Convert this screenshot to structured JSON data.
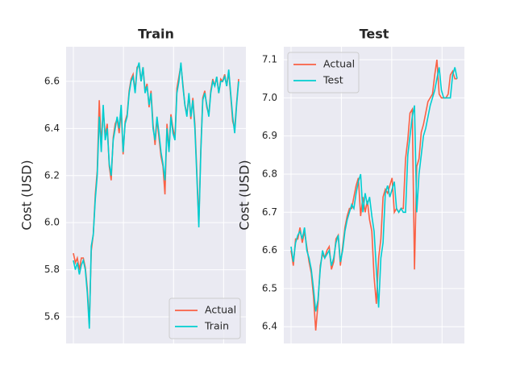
{
  "chart_data": [
    {
      "type": "line",
      "title": "Train",
      "y_label": "Cost (USD)",
      "ylim": [
        5.487,
        6.747
      ],
      "yticks": [
        5.6,
        5.8,
        {
          "value": 6,
          "label": "6.0"
        },
        6.2,
        6.4,
        6.6
      ],
      "grid": true,
      "legend": "lower right",
      "series": [
        {
          "name": "Actual",
          "color": "#fa6145",
          "values": [
            5.87,
            5.83,
            5.85,
            5.8,
            5.85,
            5.85,
            5.81,
            5.72,
            5.57,
            5.88,
            5.95,
            6.12,
            6.22,
            6.52,
            6.33,
            6.48,
            6.37,
            6.42,
            6.24,
            6.18,
            6.36,
            6.42,
            6.44,
            6.38,
            6.48,
            6.29,
            6.43,
            6.46,
            6.56,
            6.61,
            6.63,
            6.56,
            6.66,
            6.67,
            6.6,
            6.66,
            6.56,
            6.59,
            6.49,
            6.56,
            6.42,
            6.33,
            6.44,
            6.36,
            6.28,
            6.24,
            6.12,
            6.42,
            6.31,
            6.46,
            6.4,
            6.36,
            6.57,
            6.62,
            6.67,
            6.59,
            6.5,
            6.46,
            6.54,
            6.44,
            6.53,
            6.42,
            6.22,
            6.0,
            6.32,
            6.53,
            6.56,
            6.49,
            6.46,
            6.56,
            6.61,
            6.58,
            6.62,
            6.55,
            6.61,
            6.6,
            6.63,
            6.58,
            6.64,
            6.54,
            6.43,
            6.4,
            6.51,
            6.61
          ]
        },
        {
          "name": "Train",
          "color": "#00ced1",
          "values": [
            5.84,
            5.8,
            5.83,
            5.78,
            5.82,
            5.84,
            5.8,
            5.7,
            5.55,
            5.9,
            5.95,
            6.1,
            6.2,
            6.45,
            6.3,
            6.5,
            6.35,
            6.4,
            6.25,
            6.2,
            6.35,
            6.4,
            6.45,
            6.4,
            6.5,
            6.3,
            6.42,
            6.45,
            6.55,
            6.6,
            6.62,
            6.55,
            6.65,
            6.68,
            6.6,
            6.66,
            6.55,
            6.58,
            6.5,
            6.55,
            6.4,
            6.35,
            6.45,
            6.38,
            6.3,
            6.25,
            6.18,
            6.4,
            6.3,
            6.45,
            6.38,
            6.35,
            6.55,
            6.6,
            6.68,
            6.58,
            6.5,
            6.45,
            6.55,
            6.45,
            6.52,
            6.4,
            6.2,
            5.98,
            6.3,
            6.52,
            6.55,
            6.5,
            6.45,
            6.55,
            6.6,
            6.58,
            6.62,
            6.55,
            6.6,
            6.6,
            6.62,
            6.58,
            6.65,
            6.55,
            6.45,
            6.38,
            6.5,
            6.6
          ]
        }
      ]
    },
    {
      "type": "line",
      "title": "Test",
      "y_label": "Cost (USD)",
      "ylim": [
        6.356,
        7.134
      ],
      "yticks": [
        6.4,
        6.5,
        6.6,
        6.7,
        6.8,
        6.9,
        {
          "value": 7,
          "label": "7.0"
        },
        7.1
      ],
      "grid": true,
      "legend": "upper left",
      "series": [
        {
          "name": "Actual",
          "color": "#fa6145",
          "values": [
            6.6,
            6.56,
            6.63,
            6.63,
            6.66,
            6.62,
            6.65,
            6.61,
            6.57,
            6.54,
            6.48,
            6.39,
            6.46,
            6.56,
            6.59,
            6.58,
            6.6,
            6.61,
            6.55,
            6.57,
            6.63,
            6.64,
            6.56,
            6.61,
            6.66,
            6.69,
            6.71,
            6.71,
            6.74,
            6.77,
            6.79,
            6.69,
            6.74,
            6.7,
            6.73,
            6.68,
            6.65,
            6.53,
            6.46,
            6.58,
            6.63,
            6.74,
            6.76,
            6.75,
            6.77,
            6.79,
            6.7,
            6.71,
            6.7,
            6.71,
            6.71,
            6.84,
            6.89,
            6.96,
            6.97,
            6.55,
            6.82,
            6.84,
            6.91,
            6.93,
            6.96,
            6.99,
            7.0,
            7.01,
            7.06,
            7.1,
            7.01,
            7.0,
            7.0,
            7.0,
            7.01,
            7.06,
            7.07,
            7.05,
            7.05
          ]
        },
        {
          "name": "Test",
          "color": "#00ced1",
          "values": [
            6.61,
            6.57,
            6.62,
            6.64,
            6.65,
            6.63,
            6.66,
            6.6,
            6.58,
            6.55,
            6.5,
            6.44,
            6.47,
            6.55,
            6.6,
            6.58,
            6.59,
            6.6,
            6.56,
            6.58,
            6.62,
            6.64,
            6.57,
            6.6,
            6.65,
            6.68,
            6.7,
            6.72,
            6.71,
            6.75,
            6.78,
            6.8,
            6.7,
            6.75,
            6.72,
            6.74,
            6.69,
            6.65,
            6.55,
            6.45,
            6.58,
            6.62,
            6.75,
            6.77,
            6.74,
            6.76,
            6.78,
            6.71,
            6.7,
            6.71,
            6.7,
            6.7,
            6.85,
            6.9,
            6.95,
            6.98,
            6.7,
            6.8,
            6.85,
            6.9,
            6.92,
            6.95,
            6.98,
            7.0,
            7.02,
            7.05,
            7.08,
            7.02,
            7.0,
            7.0,
            7.0,
            7.0,
            7.06,
            7.08,
            7.05
          ]
        }
      ]
    }
  ]
}
